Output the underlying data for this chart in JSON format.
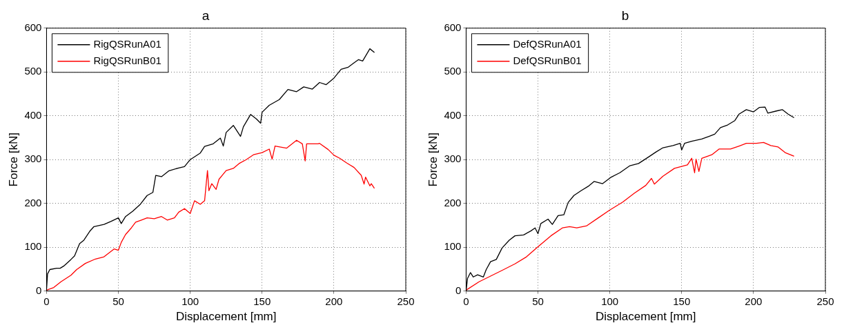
{
  "chart_data": [
    {
      "type": "line",
      "title": "a",
      "xlabel": "Displacement [mm]",
      "ylabel": "Force [kN]",
      "xlim": [
        0,
        250
      ],
      "ylim": [
        0,
        600
      ],
      "xticks": [
        0,
        50,
        100,
        150,
        200,
        250
      ],
      "yticks": [
        0,
        100,
        200,
        300,
        400,
        500,
        600
      ],
      "grid": true,
      "legend": "top left",
      "line_style": "solid",
      "marker": "none",
      "series": [
        {
          "name": "RigQSRunA01",
          "color": "#000000",
          "x": [
            0,
            0.7,
            2.3,
            7,
            9.5,
            12,
            17,
            19.5,
            23,
            26,
            30,
            33,
            40,
            45,
            50,
            52,
            55,
            60,
            65,
            70,
            74,
            76,
            80,
            85,
            92,
            96,
            100,
            107,
            110,
            116,
            121,
            123,
            125,
            130,
            135,
            137,
            142,
            146,
            149,
            150,
            155,
            162,
            168,
            174,
            179,
            185,
            190,
            194.5,
            200,
            205,
            210,
            214,
            217,
            220,
            225,
            228
          ],
          "values": [
            3,
            39,
            49,
            52,
            52,
            57,
            72,
            80,
            108,
            116,
            136,
            147,
            152,
            159,
            167,
            154,
            170,
            182,
            197,
            218,
            225,
            264,
            261,
            274,
            281,
            284,
            300,
            315,
            330,
            336,
            349,
            331,
            362,
            378,
            353,
            375,
            403,
            393,
            383,
            408,
            424,
            437,
            460,
            455,
            466,
            461,
            476,
            471,
            486,
            506,
            511,
            521,
            528,
            525,
            553,
            545
          ]
        },
        {
          "name": "RigQSRunB01",
          "color": "#ff0000",
          "x": [
            0,
            5,
            10,
            17,
            21,
            27,
            34,
            40,
            47,
            50,
            52,
            55,
            59,
            62,
            66,
            70,
            75,
            80,
            84,
            89,
            92,
            96,
            100,
            103,
            107,
            110,
            112,
            113,
            115,
            118,
            120,
            125,
            130,
            134,
            139,
            144,
            150,
            155,
            157,
            159,
            167,
            174,
            178,
            180,
            181,
            189,
            190,
            196,
            200,
            204,
            209,
            214,
            219,
            221,
            222,
            225,
            226,
            228
          ],
          "values": [
            2,
            8,
            21,
            36,
            49,
            63,
            73,
            78,
            96,
            93,
            111,
            129,
            144,
            157,
            162,
            167,
            165,
            170,
            162,
            167,
            180,
            188,
            177,
            206,
            198,
            206,
            275,
            229,
            245,
            232,
            255,
            275,
            280,
            291,
            300,
            311,
            316,
            324,
            301,
            331,
            326,
            344,
            336,
            297,
            336,
            336,
            337,
            323,
            310,
            303,
            292,
            282,
            264,
            244,
            260,
            240,
            245,
            235
          ]
        }
      ]
    },
    {
      "type": "line",
      "title": "b",
      "xlabel": "Displacement [mm]",
      "ylabel": "Force [kN]",
      "xlim": [
        0,
        250
      ],
      "ylim": [
        0,
        600
      ],
      "xticks": [
        0,
        50,
        100,
        150,
        200,
        250
      ],
      "yticks": [
        0,
        100,
        200,
        300,
        400,
        500,
        600
      ],
      "grid": true,
      "legend": "top left",
      "line_style": "solid",
      "marker": "none",
      "series": [
        {
          "name": "DefQSRunA01",
          "color": "#000000",
          "x": [
            0,
            1,
            3,
            5,
            8,
            12,
            14,
            17,
            21,
            25,
            30,
            34,
            40,
            45,
            48,
            50,
            52,
            57,
            60,
            64,
            68,
            71,
            75,
            80,
            85,
            89,
            95,
            101,
            107,
            114,
            120,
            127,
            132,
            137,
            144,
            149,
            150,
            152,
            157,
            164,
            169,
            173,
            177,
            182,
            187,
            190,
            195,
            200,
            204,
            208,
            210,
            216,
            220,
            224,
            228
          ],
          "values": [
            1,
            29,
            42,
            32,
            37,
            32,
            49,
            67,
            72,
            98,
            116,
            126,
            128,
            137,
            144,
            131,
            154,
            164,
            152,
            172,
            174,
            202,
            218,
            229,
            239,
            250,
            245,
            260,
            270,
            286,
            291,
            306,
            317,
            327,
            332,
            337,
            322,
            337,
            342,
            347,
            353,
            358,
            373,
            379,
            389,
            404,
            414,
            409,
            419,
            420,
            406,
            411,
            414,
            404,
            396
          ]
        },
        {
          "name": "DefQSRunB01",
          "color": "#ff0000",
          "x": [
            0,
            9,
            17,
            25,
            34,
            42,
            50,
            59,
            67,
            72,
            77,
            84,
            92,
            100,
            109,
            117,
            125,
            129,
            131,
            137,
            145,
            154,
            157,
            159,
            160,
            162,
            164,
            171,
            176,
            184,
            190,
            195,
            202,
            207,
            212,
            217,
            222,
            228
          ],
          "values": [
            2,
            21,
            34,
            47,
            62,
            78,
            101,
            126,
            144,
            147,
            144,
            149,
            167,
            185,
            203,
            223,
            241,
            257,
            244,
            262,
            280,
            288,
            303,
            270,
            301,
            273,
            303,
            311,
            324,
            324,
            331,
            337,
            337,
            339,
            332,
            329,
            316,
            308
          ]
        }
      ]
    }
  ]
}
